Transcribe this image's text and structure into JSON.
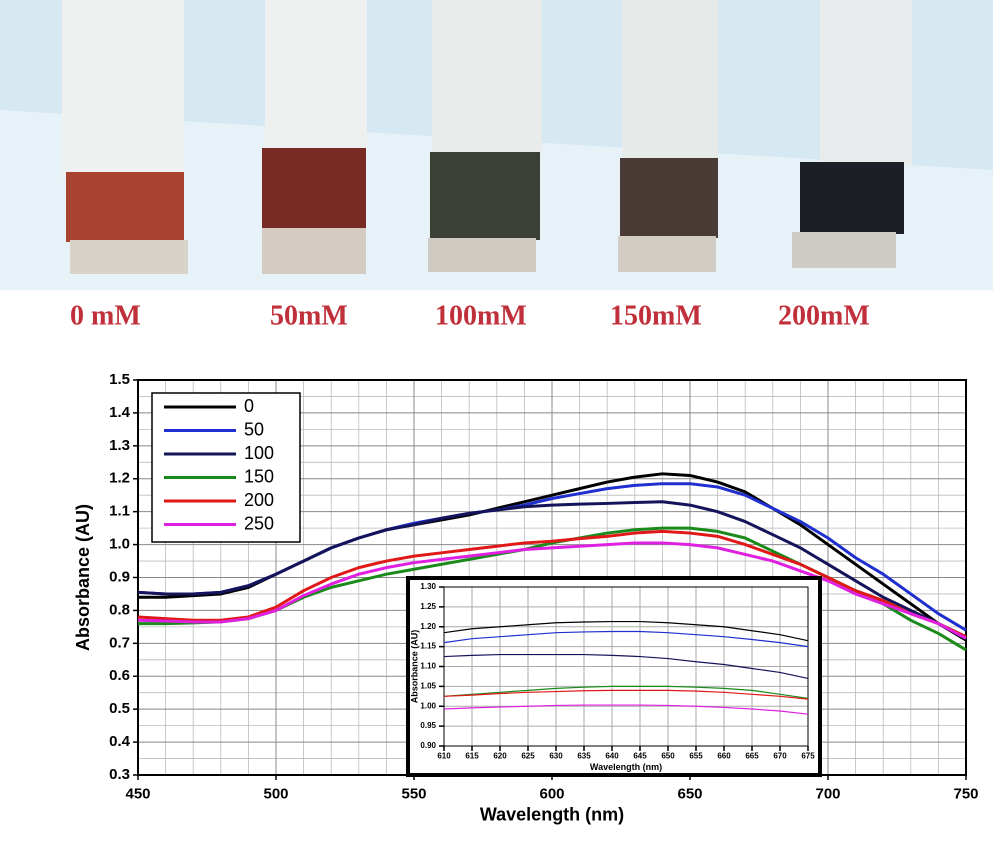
{
  "photo_labels": [
    "0 mM",
    "50mM",
    "100mM",
    "150mM",
    "200mM"
  ],
  "chart_data": [
    {
      "type": "line",
      "xlabel": "Wavelength (nm)",
      "ylabel": "Absorbance (AU)",
      "x": [
        450,
        460,
        470,
        480,
        490,
        500,
        510,
        520,
        530,
        540,
        550,
        560,
        570,
        580,
        590,
        600,
        610,
        620,
        630,
        640,
        650,
        660,
        670,
        680,
        690,
        700,
        710,
        720,
        730,
        740,
        750
      ],
      "xlim": [
        450,
        750
      ],
      "xticks": [
        450,
        500,
        550,
        600,
        650,
        700,
        750
      ],
      "ylim": [
        0.3,
        1.5
      ],
      "yticks": [
        0.3,
        0.4,
        0.5,
        0.6,
        0.7,
        0.8,
        0.9,
        {
          "value": 1,
          "label": "1.0"
        },
        1.1,
        1.2,
        1.3,
        1.4,
        1.5
      ],
      "grid": true,
      "minor_grid": true,
      "legend": "upper left",
      "series": [
        {
          "name": "0",
          "color": "#000000",
          "values": [
            0.84,
            0.84,
            0.845,
            0.85,
            0.87,
            0.91,
            0.95,
            0.99,
            1.02,
            1.045,
            1.06,
            1.075,
            1.09,
            1.11,
            1.13,
            1.15,
            1.17,
            1.19,
            1.205,
            1.215,
            1.21,
            1.19,
            1.16,
            1.11,
            1.06,
            1.0,
            0.94,
            0.88,
            0.82,
            0.76,
            0.71
          ]
        },
        {
          "name": "50",
          "color": "#1f2fd0",
          "values": [
            0.855,
            0.85,
            0.85,
            0.855,
            0.875,
            0.91,
            0.95,
            0.99,
            1.02,
            1.045,
            1.065,
            1.08,
            1.095,
            1.105,
            1.12,
            1.14,
            1.155,
            1.17,
            1.18,
            1.185,
            1.185,
            1.175,
            1.15,
            1.11,
            1.07,
            1.02,
            0.96,
            0.91,
            0.85,
            0.79,
            0.74
          ]
        },
        {
          "name": "100",
          "color": "#14145a",
          "values": [
            0.855,
            0.85,
            0.85,
            0.855,
            0.875,
            0.91,
            0.95,
            0.99,
            1.02,
            1.045,
            1.06,
            1.08,
            1.095,
            1.105,
            1.115,
            1.12,
            1.123,
            1.125,
            1.128,
            1.13,
            1.12,
            1.1,
            1.07,
            1.03,
            0.99,
            0.94,
            0.89,
            0.84,
            0.8,
            0.76,
            0.72
          ]
        },
        {
          "name": "150",
          "color": "#1a8a1a",
          "values": [
            0.76,
            0.76,
            0.762,
            0.765,
            0.775,
            0.8,
            0.84,
            0.87,
            0.89,
            0.91,
            0.925,
            0.94,
            0.955,
            0.97,
            0.985,
            1.005,
            1.02,
            1.035,
            1.045,
            1.05,
            1.05,
            1.04,
            1.02,
            0.98,
            0.94,
            0.9,
            0.86,
            0.82,
            0.77,
            0.73,
            0.68
          ]
        },
        {
          "name": "200",
          "color": "#e01818",
          "values": [
            0.78,
            0.775,
            0.77,
            0.77,
            0.78,
            0.81,
            0.86,
            0.9,
            0.93,
            0.95,
            0.965,
            0.975,
            0.985,
            0.995,
            1.005,
            1.01,
            1.018,
            1.025,
            1.035,
            1.04,
            1.035,
            1.025,
            1.0,
            0.97,
            0.94,
            0.9,
            0.86,
            0.83,
            0.79,
            0.76,
            0.72
          ]
        },
        {
          "name": "250",
          "color": "#e020e0",
          "values": [
            0.77,
            0.768,
            0.765,
            0.765,
            0.775,
            0.8,
            0.845,
            0.88,
            0.91,
            0.93,
            0.945,
            0.955,
            0.965,
            0.975,
            0.985,
            0.99,
            0.995,
            1.0,
            1.005,
            1.005,
            1.0,
            0.99,
            0.97,
            0.95,
            0.92,
            0.89,
            0.85,
            0.82,
            0.79,
            0.76,
            0.715
          ]
        }
      ]
    },
    {
      "type": "line",
      "xlabel": "Wavelength (nm)",
      "ylabel": "Absorbance (AU)",
      "x": [
        610,
        615,
        620,
        625,
        630,
        635,
        640,
        645,
        650,
        655,
        660,
        665,
        670,
        675
      ],
      "xlim": [
        610,
        675
      ],
      "xticks": [
        610,
        615,
        620,
        625,
        630,
        635,
        640,
        645,
        650,
        655,
        660,
        665,
        670,
        675
      ],
      "ylim": [
        0.9,
        1.3
      ],
      "yticks": [
        {
          "value": 0.9,
          "label": "0.90"
        },
        {
          "value": 0.95,
          "label": "0.95"
        },
        {
          "value": 1,
          "label": "1.00"
        },
        {
          "value": 1.05,
          "label": "1.05"
        },
        {
          "value": 1.1,
          "label": "1.10"
        },
        {
          "value": 1.15,
          "label": "1.15"
        },
        {
          "value": 1.2,
          "label": "1.20"
        },
        {
          "value": 1.25,
          "label": "1.25"
        },
        {
          "value": 1.3,
          "label": "1.30"
        }
      ],
      "grid": true,
      "series": [
        {
          "color": "#000000",
          "values": [
            1.185,
            1.195,
            1.2,
            1.205,
            1.21,
            1.212,
            1.213,
            1.213,
            1.21,
            1.205,
            1.2,
            1.19,
            1.18,
            1.165
          ]
        },
        {
          "color": "#1f2fd0",
          "values": [
            1.16,
            1.17,
            1.175,
            1.18,
            1.185,
            1.187,
            1.188,
            1.188,
            1.185,
            1.18,
            1.175,
            1.168,
            1.16,
            1.15
          ]
        },
        {
          "color": "#14145a",
          "values": [
            1.125,
            1.128,
            1.13,
            1.13,
            1.13,
            1.13,
            1.128,
            1.125,
            1.12,
            1.112,
            1.105,
            1.095,
            1.085,
            1.07
          ]
        },
        {
          "color": "#1a8a1a",
          "values": [
            1.025,
            1.03,
            1.035,
            1.04,
            1.045,
            1.048,
            1.05,
            1.05,
            1.05,
            1.048,
            1.045,
            1.04,
            1.03,
            1.02
          ]
        },
        {
          "color": "#e01818",
          "values": [
            1.025,
            1.028,
            1.032,
            1.035,
            1.037,
            1.039,
            1.04,
            1.04,
            1.04,
            1.038,
            1.035,
            1.03,
            1.025,
            1.018
          ]
        },
        {
          "color": "#e020e0",
          "values": [
            0.993,
            0.996,
            0.998,
            1.0,
            1.002,
            1.003,
            1.003,
            1.003,
            1.002,
            1.0,
            0.997,
            0.993,
            0.988,
            0.98
          ]
        }
      ]
    }
  ]
}
